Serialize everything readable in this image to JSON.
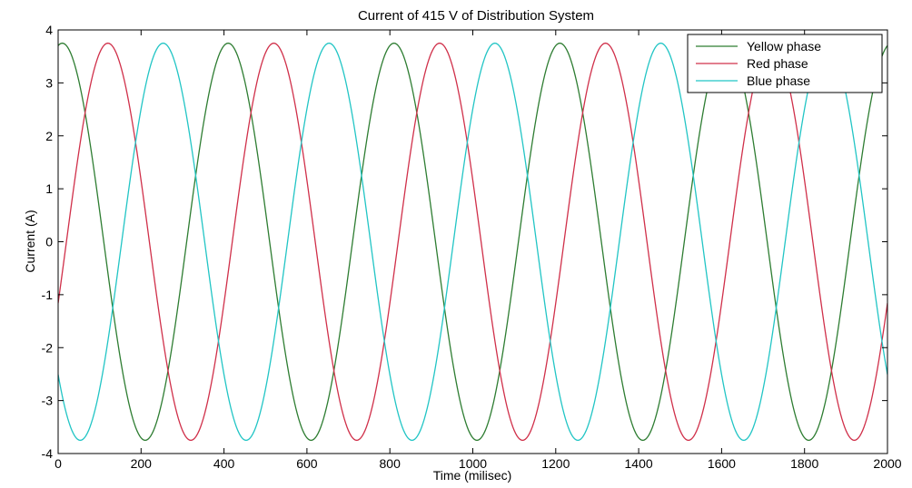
{
  "chart_data": {
    "type": "line",
    "title": "Current of 415 V of Distribution System",
    "xlabel": "Time (milisec)",
    "ylabel": "Current (A)",
    "xlim": [
      0,
      2000
    ],
    "ylim": [
      -4,
      4
    ],
    "xticks": [
      "0",
      "200",
      "400",
      "600",
      "800",
      "1000",
      "1200",
      "1400",
      "1600",
      "1800",
      "2000"
    ],
    "yticks": [
      "4",
      "3",
      "2",
      "1",
      "0",
      "-1",
      "-2",
      "-3",
      "-4"
    ],
    "grid": false,
    "legend_position": "top-right",
    "waveform": {
      "amplitude": 3.75,
      "period_ms": 400,
      "x_start": 0,
      "x_end": 2000,
      "samples": 600
    },
    "series": [
      {
        "name": "Yellow phase",
        "color": "#2e7d32",
        "phase_deg": 81
      },
      {
        "name": "Red phase",
        "color": "#d0304a",
        "phase_deg": -18
      },
      {
        "name": "Blue phase",
        "color": "#22c5c5",
        "phase_deg": 222
      }
    ]
  }
}
